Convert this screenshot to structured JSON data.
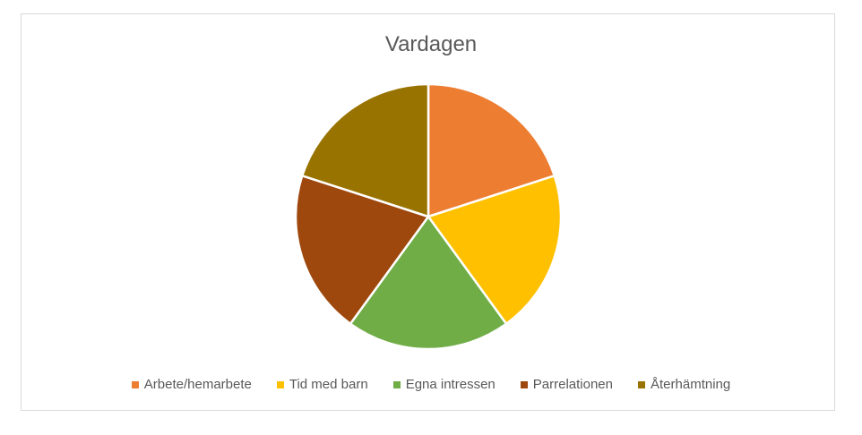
{
  "chart_data": {
    "type": "pie",
    "title": "Vardagen",
    "categories": [
      "Arbete/hemarbete",
      "Tid med barn",
      "Egna intressen",
      "Parrelationen",
      "Återhämtning"
    ],
    "values": [
      20,
      20,
      20,
      20,
      20
    ],
    "colors": [
      "#ED7D31",
      "#FFC000",
      "#70AD47",
      "#9E480E",
      "#997300"
    ],
    "legend_position": "bottom"
  }
}
